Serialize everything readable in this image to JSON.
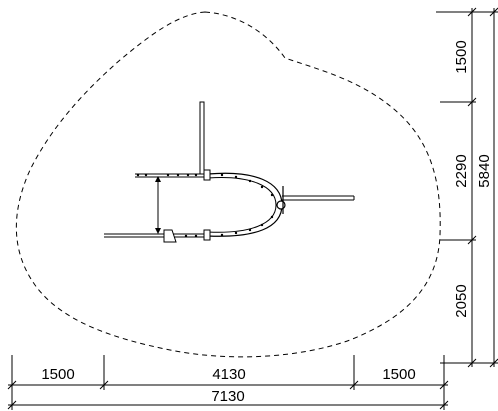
{
  "dimensions": {
    "bottom_left": "1500",
    "bottom_middle": "4130",
    "bottom_right": "1500",
    "bottom_total": "7130",
    "right_top": "1500",
    "right_middle": "2290",
    "right_bottom": "2050",
    "right_total": "5840"
  },
  "colors": {
    "line": "#000000",
    "background": "#ffffff"
  }
}
